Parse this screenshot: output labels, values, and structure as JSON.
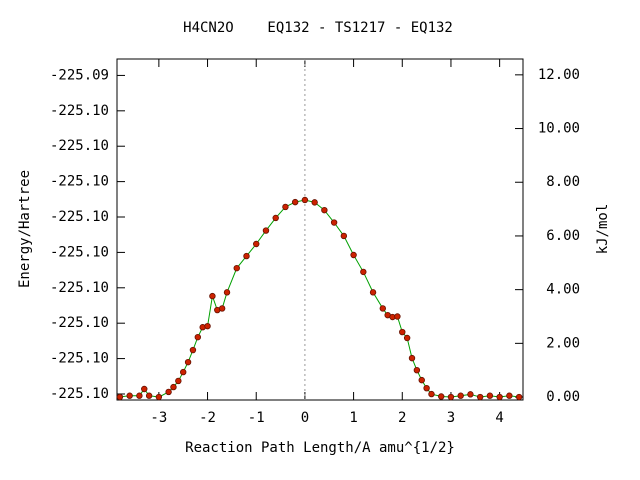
{
  "chart_data": {
    "type": "line",
    "title": "H4CN2O    EQ132 - TS1217 - EQ132",
    "xlabel": "Reaction Path Length/A amu^{1/2}",
    "ylabel": "Energy/Hartree",
    "y2label": "kJ/mol",
    "x": [
      -3.8,
      -3.6,
      -3.4,
      -3.3,
      -3.2,
      -3.0,
      -2.8,
      -2.7,
      -2.6,
      -2.5,
      -2.4,
      -2.3,
      -2.2,
      -2.1,
      -2.0,
      -1.9,
      -1.8,
      -1.7,
      -1.6,
      -1.4,
      -1.2,
      -1.0,
      -0.8,
      -0.6,
      -0.4,
      -0.2,
      0,
      0.2,
      0.4,
      0.6,
      0.8,
      1.0,
      1.2,
      1.4,
      1.6,
      1.7,
      1.8,
      1.9,
      2.0,
      2.1,
      2.2,
      2.3,
      2.4,
      2.5,
      2.6,
      2.8,
      3.0,
      3.2,
      3.4,
      3.6,
      3.8,
      4.0,
      4.2,
      4.4
    ],
    "series": [
      {
        "color": "#cc2200",
        "line_color": "#00a000",
        "axis": "y2",
        "values": [
          0,
          0.05,
          0.05,
          0.3,
          0.05,
          0,
          0.19,
          0.37,
          0.6,
          0.93,
          1.3,
          1.75,
          2.23,
          2.6,
          2.64,
          3.76,
          3.24,
          3.3,
          3.9,
          4.8,
          5.25,
          5.7,
          6.2,
          6.67,
          7.08,
          7.26,
          7.34,
          7.25,
          6.96,
          6.5,
          6.0,
          5.29,
          4.66,
          3.9,
          3.3,
          3.05,
          2.98,
          3.0,
          2.42,
          2.2,
          1.45,
          1.0,
          0.63,
          0.33,
          0.11,
          0.02,
          0,
          0.05,
          0.1,
          0,
          0.05,
          0,
          0.05,
          0
        ]
      }
    ],
    "xlim": [
      -3.86,
      4.48
    ],
    "xticks": [
      -3,
      -2,
      -1,
      0,
      1,
      2,
      3,
      4
    ],
    "ylim": [
      -225.099585,
      -225.094768
    ],
    "yticks": [
      {
        "value": -225.0995,
        "label": "-225.10"
      },
      {
        "value": -225.099,
        "label": "-225.10"
      },
      {
        "value": -225.0985,
        "label": "-225.10"
      },
      {
        "value": -225.098,
        "label": "-225.10"
      },
      {
        "value": -225.0975,
        "label": "-225.10"
      },
      {
        "value": -225.097,
        "label": "-225.10"
      },
      {
        "value": -225.0965,
        "label": "-225.10"
      },
      {
        "value": -225.096,
        "label": "-225.10"
      },
      {
        "value": -225.0955,
        "label": "-225.10"
      },
      {
        "value": -225.095,
        "label": "-225.09"
      }
    ],
    "y2lim": [
      -0.11,
      12.59
    ],
    "y2ticks": [
      {
        "value": 0,
        "label": "0.00"
      },
      {
        "value": 2,
        "label": "2.00"
      },
      {
        "value": 4,
        "label": "4.00"
      },
      {
        "value": 6,
        "label": "6.00"
      },
      {
        "value": 8,
        "label": "8.00"
      },
      {
        "value": 10,
        "label": "10.00"
      },
      {
        "value": 12,
        "label": "12.00"
      }
    ],
    "zero_line": true
  }
}
